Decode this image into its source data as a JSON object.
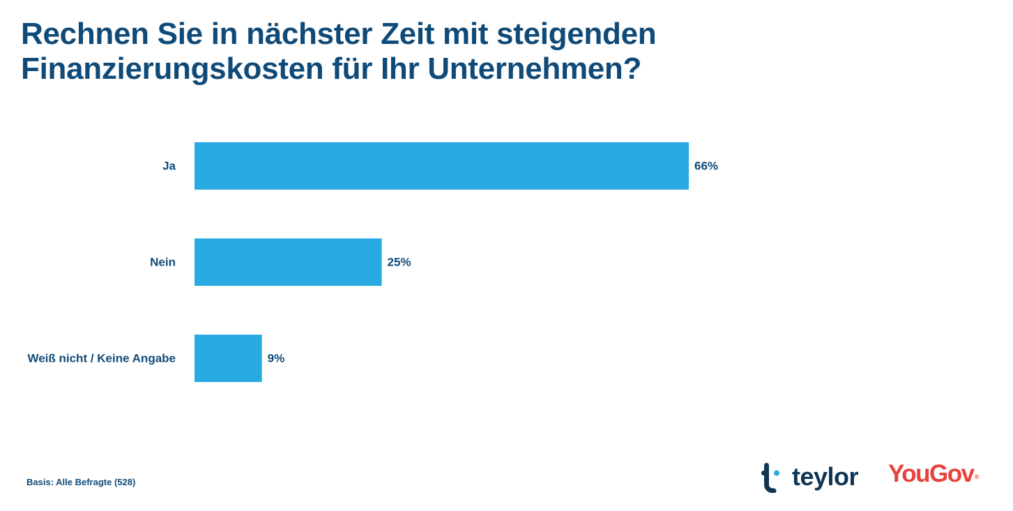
{
  "title": "Rechnen Sie in nächster Zeit mit steigenden Finanzierungskosten für Ihr Unternehmen?",
  "footnote": "Basis: Alle Befragte (528)",
  "logos": {
    "teylor": "teylor",
    "yougov": "YouGov",
    "yougov_mark": "®"
  },
  "colors": {
    "bar": "#29aae2",
    "text": "#0f4a78",
    "yougov": "#e8423b",
    "teylor": "#0f3553"
  },
  "chart_data": {
    "type": "bar",
    "orientation": "horizontal",
    "title": "Rechnen Sie in nächster Zeit mit steigenden Finanzierungskosten für Ihr Unternehmen?",
    "categories": [
      "Ja",
      "Nein",
      "Weiß nicht / Keine Angabe"
    ],
    "values": [
      66,
      25,
      9
    ],
    "value_labels": [
      "66%",
      "25%",
      "9%"
    ],
    "unit": "%",
    "xlim": [
      0,
      100
    ],
    "grid": false,
    "legend": "none"
  }
}
